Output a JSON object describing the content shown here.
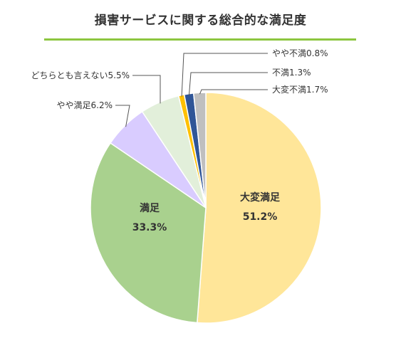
{
  "chart_data": {
    "type": "pie",
    "title": "損害サービスに関する総合的な満足度",
    "slices": [
      {
        "name": "大変満足",
        "value": 51.2,
        "label": "51.2%",
        "color": "#ffe699",
        "label_mode": "inside"
      },
      {
        "name": "満足",
        "value": 33.3,
        "label": "33.3%",
        "color": "#a9d18e",
        "label_mode": "inside"
      },
      {
        "name": "やや満足",
        "value": 6.2,
        "label": "やや満足6.2%",
        "color": "#d9ccff",
        "label_mode": "callout"
      },
      {
        "name": "どちらとも言えない",
        "value": 5.5,
        "label": "どちらとも言えない5.5%",
        "color": "#e2efda",
        "label_mode": "callout"
      },
      {
        "name": "やや不満",
        "value": 0.8,
        "label": "やや不満0.8%",
        "color": "#ffc000",
        "label_mode": "callout"
      },
      {
        "name": "不満",
        "value": 1.3,
        "label": "不満1.3%",
        "color": "#2f5597",
        "label_mode": "callout"
      },
      {
        "name": "大変不満",
        "value": 1.7,
        "label": "大変不満1.7%",
        "color": "#bfbfbf",
        "label_mode": "callout"
      }
    ],
    "start": "top",
    "direction": "clockwise",
    "legend": "none"
  }
}
